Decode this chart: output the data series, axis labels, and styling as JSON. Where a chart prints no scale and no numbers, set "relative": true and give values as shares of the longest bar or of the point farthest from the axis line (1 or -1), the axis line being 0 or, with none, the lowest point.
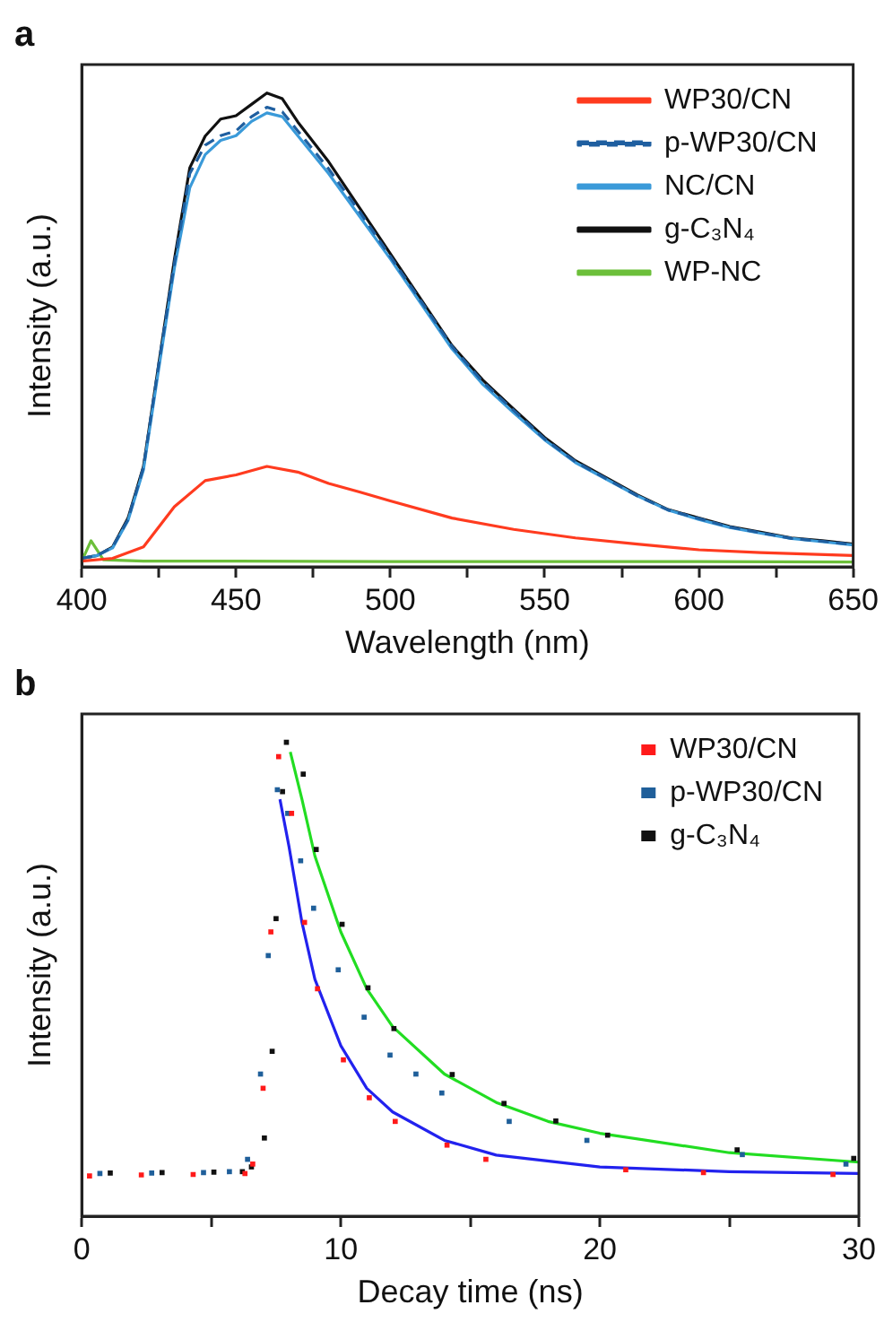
{
  "chart_data": [
    {
      "type": "line",
      "title": "a",
      "xlabel": "Wavelength (nm)",
      "ylabel": "Intensity (a.u.)",
      "relative": true,
      "legend": "top right",
      "tick_labels": "x",
      "xlim": [
        400,
        650
      ],
      "xticks": [
        400,
        {
          "value": 425,
          "label": null
        },
        450,
        {
          "value": 475,
          "label": null
        },
        500,
        {
          "value": 525,
          "label": null
        },
        550,
        {
          "value": 575,
          "label": null
        },
        600,
        {
          "value": 625,
          "label": null
        },
        650
      ],
      "x": [
        400,
        405,
        410,
        415,
        420,
        425,
        430,
        435,
        440,
        445,
        450,
        455,
        460,
        465,
        470,
        480,
        490,
        500,
        510,
        520,
        530,
        540,
        550,
        560,
        570,
        580,
        590,
        600,
        610,
        620,
        630,
        640,
        650
      ],
      "series": [
        {
          "name": "WP30/CN",
          "color": "#ff3b1f",
          "line_style": "solid",
          "x": [
            400,
            410,
            420,
            430,
            440,
            450,
            460,
            470,
            480,
            490,
            500,
            520,
            540,
            560,
            580,
            600,
            620,
            650
          ],
          "values": [
            0.012,
            0.018,
            0.042,
            0.127,
            0.182,
            0.194,
            0.212,
            0.2,
            0.176,
            0.158,
            0.139,
            0.103,
            0.079,
            0.061,
            0.048,
            0.036,
            0.03,
            0.024
          ]
        },
        {
          "name": "p-WP30/CN",
          "color": "#1f5fa0",
          "line_style": "dashed",
          "values": [
            0.018,
            0.024,
            0.042,
            0.1,
            0.21,
            0.43,
            0.64,
            0.83,
            0.89,
            0.91,
            0.92,
            0.95,
            0.97,
            0.96,
            0.92,
            0.84,
            0.75,
            0.655,
            0.56,
            0.465,
            0.39,
            0.33,
            0.27,
            0.222,
            0.186,
            0.15,
            0.12,
            0.102,
            0.084,
            0.072,
            0.06,
            0.054,
            0.047
          ]
        },
        {
          "name": "NC/CN",
          "color": "#3a9ad9",
          "line_style": "solid",
          "values": [
            0.018,
            0.024,
            0.04,
            0.098,
            0.205,
            0.42,
            0.63,
            0.8,
            0.87,
            0.9,
            0.91,
            0.94,
            0.958,
            0.95,
            0.91,
            0.83,
            0.74,
            0.65,
            0.555,
            0.46,
            0.385,
            0.325,
            0.268,
            0.22,
            0.185,
            0.15,
            0.12,
            0.1,
            0.083,
            0.071,
            0.06,
            0.053,
            0.046
          ]
        },
        {
          "name": "g-C₃N₄",
          "color": "#111111",
          "line_style": "solid",
          "values": [
            0.018,
            0.024,
            0.042,
            0.103,
            0.212,
            0.43,
            0.648,
            0.842,
            0.909,
            0.945,
            0.952,
            0.976,
            1,
            0.988,
            0.939,
            0.855,
            0.758,
            0.661,
            0.564,
            0.467,
            0.394,
            0.333,
            0.273,
            0.224,
            0.188,
            0.152,
            0.121,
            0.103,
            0.085,
            0.073,
            0.061,
            0.055,
            0.048
          ]
        },
        {
          "name": "WP-NC",
          "color": "#6cbf3a",
          "line_style": "solid",
          "x": [
            400,
            403,
            407,
            420,
            450,
            500,
            550,
            600,
            650
          ],
          "values": [
            0.012,
            0.055,
            0.015,
            0.012,
            0.012,
            0.011,
            0.011,
            0.011,
            0.01
          ]
        }
      ]
    },
    {
      "type": "scatter",
      "title": "b",
      "xlabel": "Decay time (ns)",
      "ylabel": "Intensity (a.u.)",
      "relative": true,
      "legend": "top right",
      "tick_labels": "x",
      "xlim": [
        0,
        30
      ],
      "xticks": [
        0,
        {
          "value": 5,
          "label": null
        },
        10,
        {
          "value": 15,
          "label": null
        },
        20,
        {
          "value": 25,
          "label": null
        },
        30
      ],
      "series": [
        {
          "name": "WP30/CN",
          "color": "#ff1a1a",
          "marker": "square",
          "x": [
            0.3,
            2.3,
            4.3,
            6.3,
            6.6,
            7,
            7.3,
            7.6,
            8.1,
            8.6,
            9.1,
            10.1,
            11.1,
            12.1,
            14.1,
            15.6,
            21,
            24,
            29
          ],
          "values": [
            0.085,
            0.087,
            0.088,
            0.09,
            0.11,
            0.27,
            0.6,
            0.97,
            0.85,
            0.62,
            0.48,
            0.33,
            0.25,
            0.2,
            0.15,
            0.12,
            0.098,
            0.092,
            0.088
          ]
        },
        {
          "name": "p-WP30/CN",
          "color": "#1f5f9a",
          "marker": "square",
          "x": [
            0.7,
            2.7,
            4.7,
            5.7,
            6.4,
            6.9,
            7.2,
            7.55,
            7.95,
            8.45,
            8.95,
            9.9,
            10.9,
            11.9,
            12.9,
            13.9,
            16.5,
            19.5,
            25.5,
            29.5
          ],
          "values": [
            0.09,
            0.091,
            0.092,
            0.094,
            0.12,
            0.3,
            0.55,
            0.9,
            0.85,
            0.75,
            0.65,
            0.52,
            0.42,
            0.34,
            0.3,
            0.26,
            0.2,
            0.16,
            0.13,
            0.11
          ]
        },
        {
          "name": "g-C₃N₄",
          "color": "#111111",
          "marker": "square",
          "x": [
            1.1,
            3.1,
            5.1,
            6.2,
            6.55,
            7.05,
            7.35,
            7.5,
            7.75,
            7.9,
            8.55,
            9.05,
            10.05,
            11.05,
            12.05,
            14.3,
            16.3,
            18.3,
            20.3,
            25.3,
            29.8
          ],
          "values": [
            0.091,
            0.092,
            0.093,
            0.094,
            0.104,
            0.165,
            0.348,
            0.628,
            0.896,
            1,
            0.933,
            0.774,
            0.616,
            0.482,
            0.396,
            0.299,
            0.238,
            0.201,
            0.171,
            0.14,
            0.122
          ]
        },
        {
          "type": "line",
          "color": "#2222ee",
          "x": [
            7.65,
            8,
            8.5,
            9,
            10,
            11,
            12,
            14,
            16,
            20,
            25,
            30
          ],
          "values": [
            0.88,
            0.78,
            0.62,
            0.5,
            0.36,
            0.27,
            0.22,
            0.16,
            0.129,
            0.104,
            0.094,
            0.09
          ]
        },
        {
          "type": "line",
          "color": "#22dd22",
          "x": [
            8.05,
            8.5,
            9,
            10,
            11,
            12,
            14,
            16,
            18,
            20,
            25,
            30
          ],
          "values": [
            0.98,
            0.88,
            0.76,
            0.6,
            0.48,
            0.4,
            0.3,
            0.24,
            0.2,
            0.175,
            0.134,
            0.114
          ]
        }
      ]
    }
  ]
}
